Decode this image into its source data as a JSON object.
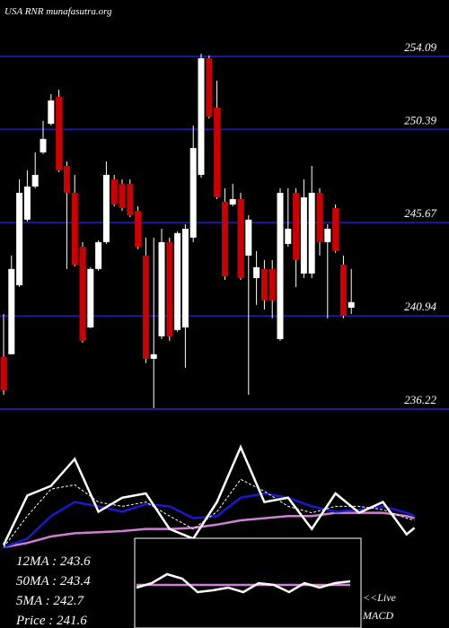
{
  "chart_data": [
    {
      "type": "candlestick",
      "title": "USA RNR munafasutra.org",
      "ylim": [
        235.13,
        256.95
      ],
      "yticks": [
        254.09,
        250.39,
        245.67,
        240.94,
        236.22
      ],
      "grid": true,
      "up_color": "#ffffff",
      "down_color": "#cc0000",
      "grid_color": "#1a1a9a",
      "open": [
        238.86,
        239.0,
        242.5,
        245.82,
        247.5,
        249.23,
        250.68,
        252.04,
        248.54,
        247.18,
        244.45,
        240.36,
        243.32,
        244.68,
        247.86,
        247.64,
        247.64,
        246.27,
        244.0,
        238.77,
        239.91,
        244.68,
        240.23,
        240.36,
        244.91,
        248.09,
        254.0,
        251.5,
        246.73,
        246.59,
        246.86,
        244.0,
        242.86,
        243.32,
        243.32,
        239.77,
        244.59,
        247.18,
        243.09,
        243.09,
        247.18,
        244.68,
        246.41,
        243.54,
        241.36
      ],
      "high": [
        241.04,
        244.0,
        247.86,
        248.32,
        249.23,
        250.82,
        252.18,
        252.41,
        248.77,
        248.09,
        244.68,
        243.41,
        244.77,
        248.77,
        248.09,
        247.86,
        247.86,
        246.5,
        244.91,
        244.91,
        245.36,
        244.91,
        245.23,
        245.59,
        250.59,
        254.23,
        254.14,
        252.86,
        247.41,
        247.64,
        247.18,
        246.04,
        244.23,
        243.77,
        243.77,
        247.41,
        247.41,
        247.41,
        247.86,
        248.54,
        247.41,
        245.59,
        246.59,
        244.0,
        243.32
      ],
      "low": [
        236.95,
        239.0,
        242.41,
        245.73,
        247.41,
        249.14,
        250.59,
        248.23,
        243.32,
        243.45,
        239.59,
        240.32,
        243.23,
        244.59,
        246.5,
        246.27,
        245.95,
        244.32,
        238.55,
        236.27,
        239.77,
        239.68,
        240.14,
        238.32,
        244.68,
        247.95,
        250.95,
        246.86,
        242.77,
        246.5,
        242.77,
        236.95,
        241.5,
        241.27,
        240.82,
        239.68,
        244.45,
        242.41,
        242.86,
        242.86,
        244.0,
        240.82,
        244.14,
        240.82,
        241.04
      ],
      "close": [
        237.18,
        243.32,
        247.18,
        247.5,
        248.09,
        249.91,
        251.86,
        248.32,
        247.18,
        243.54,
        239.68,
        243.32,
        244.68,
        248.09,
        246.59,
        246.41,
        246.04,
        244.45,
        238.77,
        239.0,
        244.68,
        239.91,
        245.14,
        245.36,
        249.45,
        254.0,
        251.04,
        246.95,
        242.95,
        246.86,
        242.86,
        245.82,
        243.41,
        241.73,
        241.73,
        247.18,
        245.36,
        243.77,
        246.95,
        247.18,
        244.68,
        245.36,
        244.23,
        240.95,
        241.64
      ],
      "annotations": [
        "12MA : 243.6",
        "50MA : 243.4",
        "5MA : 242.7",
        "Price   : 241.6"
      ]
    },
    {
      "type": "line",
      "ylim": [
        0,
        100
      ],
      "x": [
        0,
        3,
        6,
        9,
        12,
        15,
        18,
        21,
        24,
        27,
        30,
        33,
        36,
        39,
        42,
        45,
        48,
        51,
        52
      ],
      "series": [
        {
          "color": "#d080d0",
          "values": [
            0,
            4,
            10,
            13,
            14,
            15,
            17,
            17,
            18,
            21,
            25,
            27,
            29,
            29,
            32,
            32,
            32,
            29,
            27
          ]
        },
        {
          "color": "#1a1acc",
          "values": [
            0,
            8,
            29,
            42,
            38,
            33,
            40,
            38,
            27,
            29,
            46,
            50,
            46,
            38,
            33,
            35,
            38,
            32,
            29
          ]
        },
        {
          "color": "#ffffff",
          "dashed": true,
          "values": [
            0,
            29,
            54,
            58,
            42,
            38,
            42,
            29,
            17,
            33,
            63,
            52,
            38,
            32,
            38,
            38,
            35,
            27,
            25
          ]
        },
        {
          "color": "#ffffff",
          "values": [
            2,
            48,
            57,
            82,
            33,
            46,
            50,
            17,
            8,
            42,
            93,
            42,
            46,
            17,
            50,
            32,
            42,
            12,
            18
          ]
        }
      ]
    },
    {
      "type": "line",
      "ylim": [
        -20,
        20
      ],
      "annotations": [
        "<<Live",
        "MACD"
      ],
      "x": [
        0,
        1,
        2,
        3,
        4,
        5,
        6,
        7,
        8,
        9,
        10,
        11,
        12,
        13,
        14
      ],
      "series": [
        {
          "color": "#d080d0",
          "values": [
            0,
            0,
            0,
            0,
            0,
            0,
            0,
            0,
            0,
            0,
            0,
            0,
            0,
            0,
            0
          ]
        },
        {
          "color": "#ffffff",
          "values": [
            -3,
            2,
            12,
            7,
            -8,
            -6,
            -3,
            -8,
            2,
            0,
            -8,
            2,
            -3,
            2,
            4
          ]
        }
      ]
    }
  ]
}
